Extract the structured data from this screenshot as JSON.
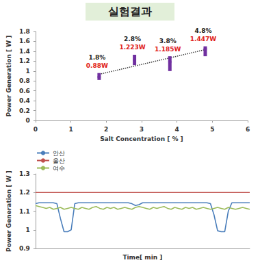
{
  "header": {
    "title": "실험결과"
  },
  "chart_data": [
    {
      "type": "scatter",
      "x": [
        1.8,
        2.8,
        3.8,
        4.8
      ],
      "values": [
        0.88,
        1.223,
        1.185,
        1.447
      ],
      "value_labels": [
        "0.88W",
        "1.223W",
        "1.185W",
        "1.447W"
      ],
      "annotations": [
        "1.8%",
        "2.8%",
        "3.8%",
        "4.8%"
      ],
      "ranges": [
        [
          0.82,
          0.96
        ],
        [
          1.12,
          1.33
        ],
        [
          1.0,
          1.3
        ],
        [
          1.3,
          1.5
        ]
      ],
      "color": "#7030a0",
      "line_style": "dotted",
      "data_labels": true,
      "x_label": "Salt Concentration [ % ]",
      "y_label": "Power Generation [ W ]",
      "xlim": [
        0,
        6
      ],
      "xticks": [
        0,
        1,
        2,
        3,
        4,
        5,
        6
      ],
      "ylim": [
        0,
        1.8
      ],
      "yticks": [
        0,
        0.2,
        0.4,
        0.6,
        0.8,
        1,
        1.2,
        1.4,
        1.6,
        1.8
      ],
      "grid": false
    },
    {
      "type": "line",
      "x": [
        0,
        1,
        2,
        3,
        4,
        5,
        6,
        7,
        8,
        9,
        10,
        11,
        12,
        13,
        14,
        15,
        16,
        17,
        18,
        19,
        20,
        21,
        22,
        23,
        24,
        25,
        26,
        27,
        28,
        29,
        30,
        31,
        32,
        33,
        34,
        35,
        36,
        37,
        38,
        39,
        40,
        41,
        42,
        43,
        44,
        45,
        46,
        47,
        48,
        49,
        50,
        51,
        52,
        53,
        54,
        55,
        56,
        57,
        58,
        59,
        60
      ],
      "series": [
        {
          "name": "안산",
          "color": "#4a7ebb",
          "values": [
            1.14,
            1.145,
            1.145,
            1.145,
            1.145,
            1.145,
            1.14,
            1.06,
            0.99,
            0.99,
            1.0,
            1.14,
            1.145,
            1.145,
            1.145,
            1.145,
            1.145,
            1.145,
            1.145,
            1.145,
            1.145,
            1.145,
            1.145,
            1.145,
            1.145,
            1.145,
            1.145,
            1.14,
            1.13,
            1.135,
            1.145,
            1.145,
            1.145,
            1.145,
            1.145,
            1.145,
            1.145,
            1.145,
            1.145,
            1.145,
            1.145,
            1.145,
            1.145,
            1.145,
            1.145,
            1.145,
            1.145,
            1.145,
            1.145,
            1.14,
            1.08,
            0.995,
            0.99,
            0.99,
            1.1,
            1.145,
            1.145,
            1.145,
            1.145,
            1.145,
            1.145
          ]
        },
        {
          "name": "울산",
          "color": "#c0504d",
          "values": [
            1.2,
            1.2,
            1.2,
            1.2,
            1.2,
            1.2,
            1.2,
            1.2,
            1.2,
            1.2,
            1.2,
            1.2,
            1.2,
            1.2,
            1.2,
            1.2,
            1.2,
            1.2,
            1.2,
            1.2,
            1.2,
            1.2,
            1.2,
            1.2,
            1.2,
            1.2,
            1.2,
            1.2,
            1.2,
            1.2,
            1.2,
            1.2,
            1.2,
            1.2,
            1.2,
            1.2,
            1.2,
            1.2,
            1.2,
            1.2,
            1.2,
            1.2,
            1.2,
            1.2,
            1.2,
            1.2,
            1.2,
            1.2,
            1.2,
            1.2,
            1.2,
            1.2,
            1.2,
            1.2,
            1.2,
            1.2,
            1.2,
            1.2,
            1.2,
            1.2,
            1.2
          ]
        },
        {
          "name": "여수",
          "color": "#9bbb59",
          "values": [
            1.13,
            1.125,
            1.12,
            1.115,
            1.12,
            1.11,
            1.115,
            1.12,
            1.11,
            1.115,
            1.12,
            1.115,
            1.11,
            1.12,
            1.115,
            1.11,
            1.12,
            1.125,
            1.115,
            1.11,
            1.12,
            1.115,
            1.12,
            1.11,
            1.115,
            1.12,
            1.115,
            1.11,
            1.12,
            1.125,
            1.12,
            1.115,
            1.11,
            1.12,
            1.115,
            1.12,
            1.125,
            1.115,
            1.11,
            1.12,
            1.115,
            1.11,
            1.12,
            1.115,
            1.12,
            1.11,
            1.115,
            1.12,
            1.115,
            1.11,
            1.115,
            1.12,
            1.115,
            1.11,
            1.12,
            1.115,
            1.11,
            1.115,
            1.12,
            1.115,
            1.11
          ]
        }
      ],
      "x_label": "Time[ min ]",
      "y_label": "Power Generation [ W ]",
      "xlim": [
        0,
        60
      ],
      "ylim": [
        0.9,
        1.3
      ],
      "yticks": [
        0.9,
        1,
        1.1,
        1.2,
        1.3
      ],
      "tick_labels": "y",
      "legend": "upper left",
      "grid": false
    }
  ]
}
